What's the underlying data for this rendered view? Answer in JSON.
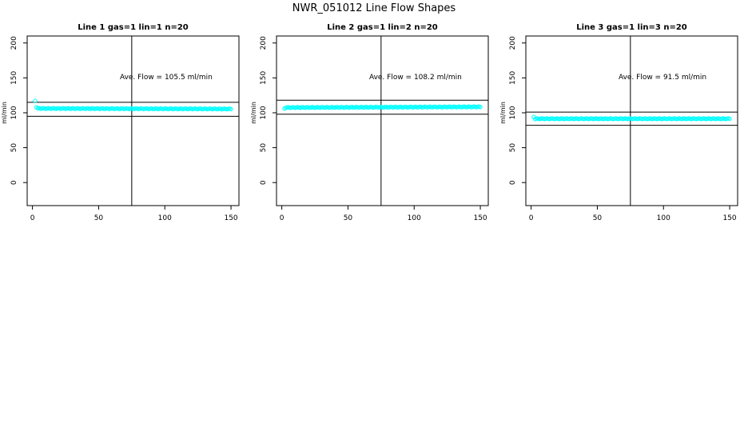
{
  "figure": {
    "title": "NWR_051012  Line Flow Shapes"
  },
  "chart_data": [
    {
      "type": "scatter",
      "title": "Line 1 gas=1 lin=1 n=20",
      "xlabel": "",
      "ylabel": "ml/min",
      "xlim": [
        -4,
        156
      ],
      "ylim": [
        -33,
        210
      ],
      "xticks": [
        0,
        50,
        100,
        150
      ],
      "yticks": [
        0,
        50,
        100,
        150,
        200
      ],
      "annotation": "Ave. Flow =  105.5  ml/min",
      "hlines": [
        115,
        95
      ],
      "vline": 75,
      "marker_color": "#00ffff",
      "series": [
        {
          "first_points": [
            [
              2,
              117
            ],
            [
              3,
              108
            ]
          ],
          "x_range": [
            4,
            150
          ],
          "y_start": 106.2,
          "y_end": 105.5
        }
      ]
    },
    {
      "type": "scatter",
      "title": "Line 2 gas=1 lin=2 n=20",
      "xlabel": "",
      "ylabel": "ml/min",
      "xlim": [
        -4,
        156
      ],
      "ylim": [
        -33,
        210
      ],
      "xticks": [
        0,
        50,
        100,
        150
      ],
      "yticks": [
        0,
        50,
        100,
        150,
        200
      ],
      "annotation": "Ave. Flow =  108.2  ml/min",
      "hlines": [
        118,
        98
      ],
      "vline": 75,
      "marker_color": "#00ffff",
      "series": [
        {
          "first_points": [
            [
              2,
              106
            ]
          ],
          "x_range": [
            3,
            150
          ],
          "y_start": 107.5,
          "y_end": 108.5
        }
      ]
    },
    {
      "type": "scatter",
      "title": "Line 3 gas=1 lin=3 n=20",
      "xlabel": "",
      "ylabel": "ml/min",
      "xlim": [
        -4,
        156
      ],
      "ylim": [
        -33,
        210
      ],
      "xticks": [
        0,
        50,
        100,
        150
      ],
      "yticks": [
        0,
        50,
        100,
        150,
        200
      ],
      "annotation": "Ave. Flow =  91.5  ml/min",
      "hlines": [
        101,
        82
      ],
      "vline": 75,
      "marker_color": "#00ffff",
      "series": [
        {
          "first_points": [
            [
              2,
              94
            ]
          ],
          "x_range": [
            3,
            150
          ],
          "y_start": 91.5,
          "y_end": 91.5
        }
      ]
    }
  ]
}
